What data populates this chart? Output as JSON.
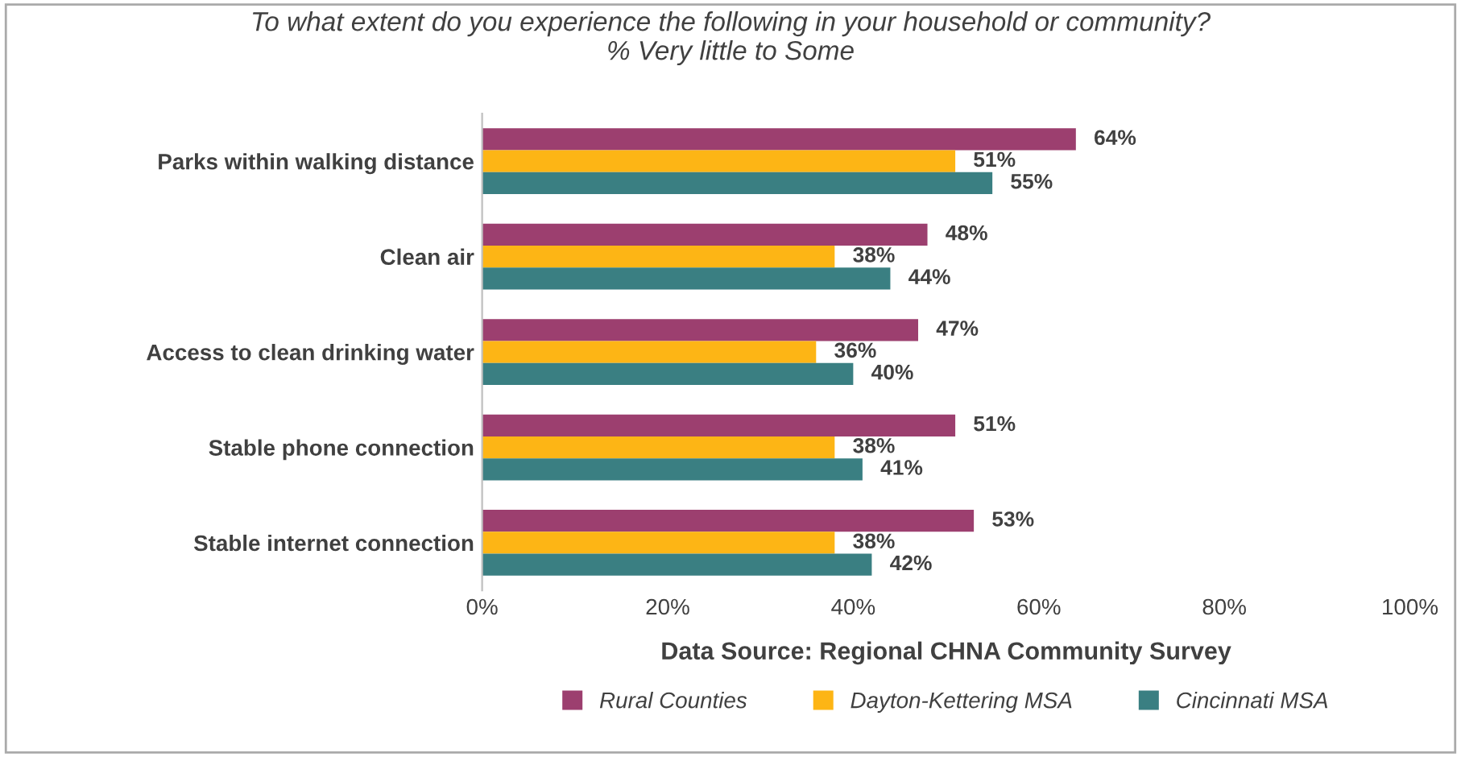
{
  "chart_data": {
    "type": "bar",
    "orientation": "horizontal",
    "title": "To what extent do you experience the following in your household or community?\n% Very little to Some",
    "xlabel": "Data Source: Regional CHNA Community Survey",
    "categories": [
      "Parks within walking distance",
      "Clean air",
      "Access to clean drinking water",
      "Stable phone connection",
      "Stable internet connection"
    ],
    "series": [
      {
        "name": "Rural Counties",
        "color": "#9c3f6f",
        "values": [
          64,
          48,
          47,
          51,
          53
        ],
        "value_labels": [
          "64%",
          "48%",
          "47%",
          "51%",
          "53%"
        ]
      },
      {
        "name": "Dayton-Kettering MSA",
        "color": "#fdb515",
        "values": [
          51,
          38,
          36,
          38,
          38
        ],
        "value_labels": [
          "51%",
          "38%",
          "36%",
          "38%",
          "38%"
        ]
      },
      {
        "name": "Cincinnati MSA",
        "color": "#3a7f82",
        "values": [
          55,
          44,
          40,
          41,
          42
        ],
        "value_labels": [
          "55%",
          "44%",
          "40%",
          "41%",
          "42%"
        ]
      }
    ],
    "xlim": [
      0,
      100
    ],
    "xticks": [
      {
        "value": 0,
        "label": "0%"
      },
      {
        "value": 20,
        "label": "20%"
      },
      {
        "value": 40,
        "label": "40%"
      },
      {
        "value": 60,
        "label": "60%"
      },
      {
        "value": 80,
        "label": "80%"
      },
      {
        "value": 100,
        "label": "100%"
      }
    ],
    "grid": false,
    "legend": "bottom"
  }
}
